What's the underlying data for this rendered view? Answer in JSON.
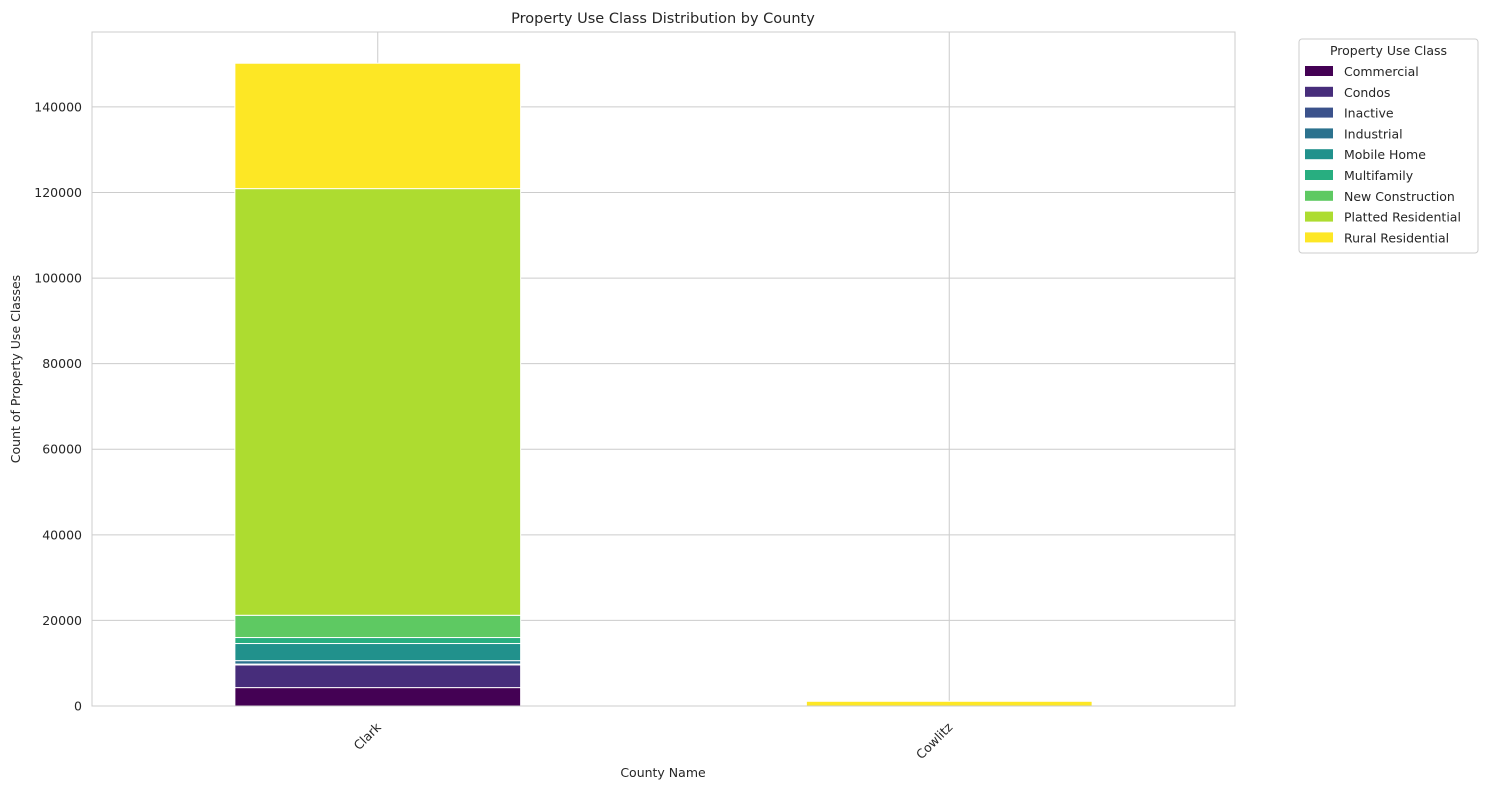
{
  "chart_data": {
    "type": "bar",
    "stacked": true,
    "title": "Property Use Class Distribution by County",
    "xlabel": "County Name",
    "ylabel": "Count of Property Use Classes",
    "categories": [
      "Clark",
      "Cowlitz"
    ],
    "ylim": [
      0,
      157500
    ],
    "yticks": [
      0,
      20000,
      40000,
      60000,
      80000,
      100000,
      120000,
      140000
    ],
    "ytick_labels": [
      "0",
      "20000",
      "40000",
      "60000",
      "80000",
      "100000",
      "120000",
      "140000"
    ],
    "grid": true,
    "legend": {
      "title": "Property Use Class",
      "placement": "outside upper-right"
    },
    "series": [
      {
        "name": "Commercial",
        "color": "#440154",
        "values": [
          4300,
          0
        ]
      },
      {
        "name": "Condos",
        "color": "#472d7b",
        "values": [
          5300,
          0
        ]
      },
      {
        "name": "Inactive",
        "color": "#3b528b",
        "values": [
          200,
          0
        ]
      },
      {
        "name": "Industrial",
        "color": "#2c728e",
        "values": [
          800,
          0
        ]
      },
      {
        "name": "Mobile Home",
        "color": "#21918c",
        "values": [
          4000,
          0
        ]
      },
      {
        "name": "Multifamily",
        "color": "#28ae80",
        "values": [
          1400,
          0
        ]
      },
      {
        "name": "New Construction",
        "color": "#5ec962",
        "values": [
          5200,
          0
        ]
      },
      {
        "name": "Platted Residential",
        "color": "#addc30",
        "values": [
          99700,
          0
        ]
      },
      {
        "name": "Rural Residential",
        "color": "#fde725",
        "values": [
          29300,
          1100
        ]
      }
    ]
  }
}
